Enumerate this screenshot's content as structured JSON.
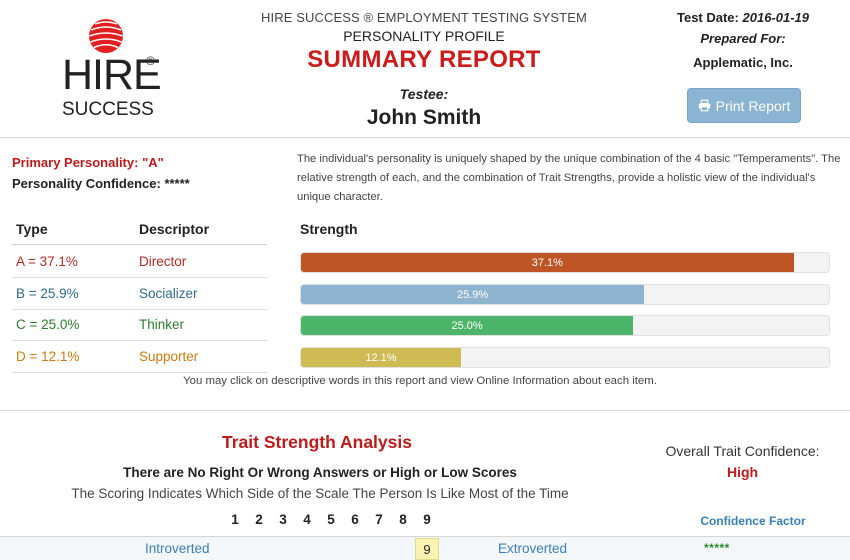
{
  "header": {
    "logo_hire": "HIRE",
    "logo_reg": "®",
    "logo_success": "SUCCESS",
    "system_title": "HIRE SUCCESS ® EMPLOYMENT TESTING SYSTEM",
    "profile_title": "PERSONALITY PROFILE",
    "report_title": "SUMMARY REPORT",
    "testee_label": "Testee:",
    "testee_name": "John Smith",
    "test_date_label": "Test Date:",
    "test_date_value": "2016-01-19",
    "prepared_for_label": "Prepared For:",
    "company": "Applematic, Inc.",
    "print_button": "Print Report"
  },
  "summary": {
    "primary_label": "Primary Personality:",
    "primary_value": "\"A\"",
    "confidence_label": "Personality Confidence:",
    "confidence_value": "*****",
    "description": "The individual's personality is uniquely shaped by the unique combination of the 4 basic \"Temperaments\". The relative strength of each, and the combination of Trait Strengths, provide a holistic view of the individual's unique character."
  },
  "table": {
    "headers": {
      "type": "Type",
      "descriptor": "Descriptor",
      "strength": "Strength"
    },
    "rows": [
      {
        "type": "A = 37.1%",
        "descriptor": "Director",
        "strength_pct": 93.3,
        "label": "37.1%",
        "color": "#bf5527"
      },
      {
        "type": "B = 25.9%",
        "descriptor": "Socializer",
        "strength_pct": 65.0,
        "label": "25.9%",
        "color": "#8fb4cf"
      },
      {
        "type": "C = 25.0%",
        "descriptor": "Thinker",
        "strength_pct": 62.9,
        "label": "25.0%",
        "color": "#4db56a"
      },
      {
        "type": "D = 12.1%",
        "descriptor": "Supporter",
        "strength_pct": 30.3,
        "label": "12.1%",
        "color": "#cfbb54"
      }
    ],
    "text_colors": [
      "#b22a22",
      "#2e6a8a",
      "#2f7a2f",
      "#cc7a10"
    ],
    "click_note": "You may click on descriptive words in this report and view Online Information about each item."
  },
  "trait": {
    "title": "Trait Strength Analysis",
    "subtitle1": "There are No Right Or Wrong Answers or High or Low Scores",
    "subtitle2": "The Scoring Indicates Which Side of the Scale The Person Is Like Most of the Time",
    "scale": [
      "1",
      "2",
      "3",
      "4",
      "5",
      "6",
      "7",
      "8",
      "9"
    ],
    "overall_label": "Overall Trait Confidence:",
    "overall_value": "High",
    "confidence_factor_label": "Confidence Factor",
    "row": {
      "left": "Introverted",
      "score": "9",
      "right": "Extroverted",
      "confidence": "*****"
    }
  }
}
